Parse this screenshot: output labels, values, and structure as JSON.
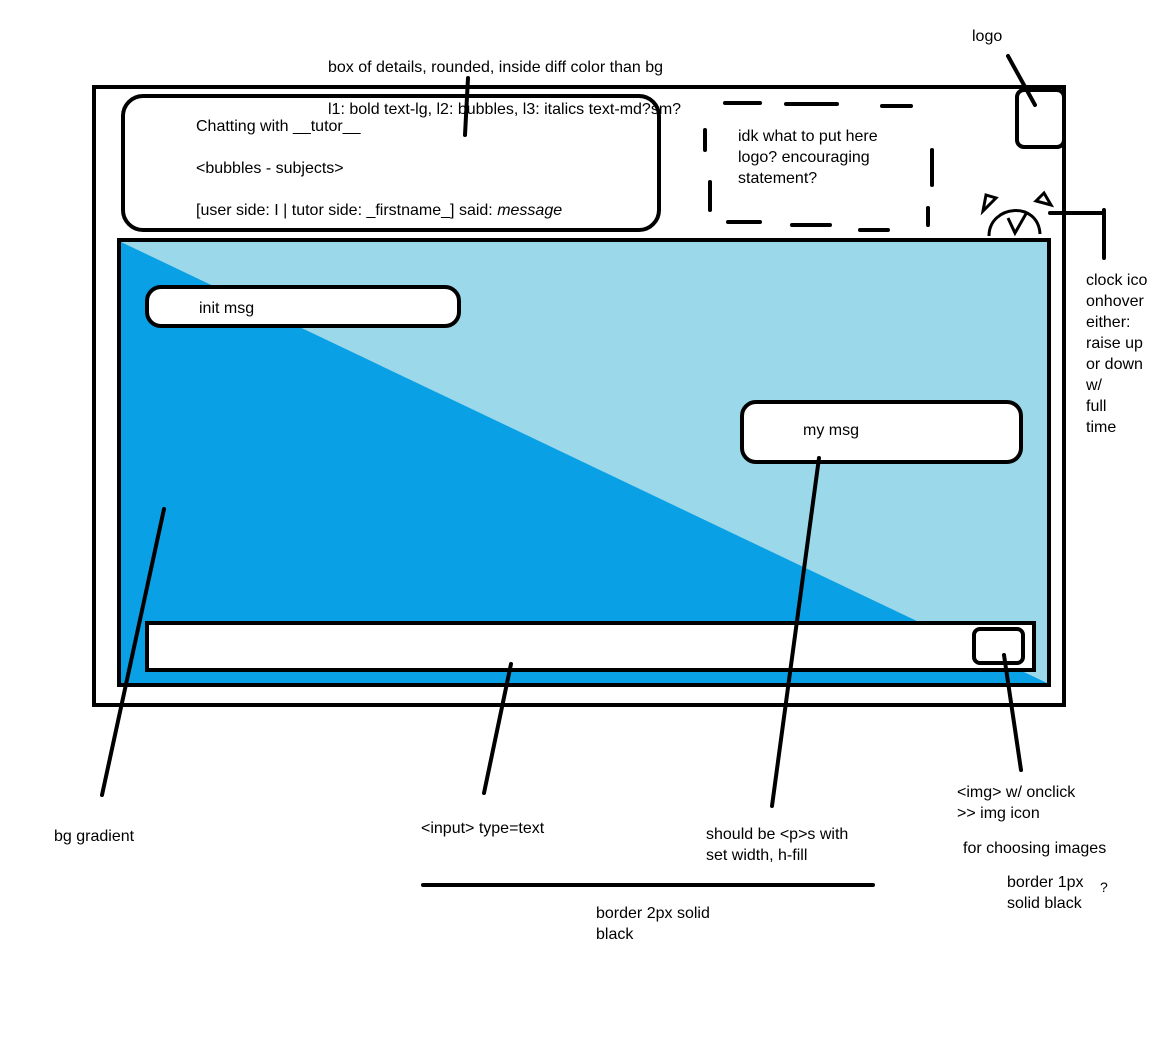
{
  "annotations": {
    "details_box_line1": "box of details, rounded, inside diff color than bg",
    "details_box_line2": "l1: bold text-lg, l2: bubbles, l3: italics text-md?sm?",
    "logo": "logo",
    "clock": "clock ico\nonhover\neither:\nraise up\nor down\nw/\nfull\ntime",
    "bg_gradient": "bg gradient",
    "input": "<input> type=text",
    "p_width": "should be <p>s with\nset width, h-fill",
    "img_onclick": "<img> w/ onclick\n>> img icon",
    "choosing_images": "for choosing images",
    "border_1px": "border 1px\nsolid black",
    "question_mark": "?",
    "border_2px": "border 2px solid\nblack"
  },
  "details": {
    "line1": "Chatting with __tutor__",
    "line2": "<bubbles - subjects>",
    "line3_prefix": "[user side: I | tutor side: _firstname_] said: ",
    "line3_italic": "message"
  },
  "placeholder_box": "idk what to put here\nlogo? encouraging\nstatement?",
  "messages": {
    "init": "init msg",
    "mine": "my msg"
  },
  "colors": {
    "gradient_dark": "#0aa0e6",
    "gradient_light": "#9ad8ea",
    "stroke": "#000000"
  },
  "icons": [
    "alarm-clock-icon",
    "image-picker-icon"
  ]
}
